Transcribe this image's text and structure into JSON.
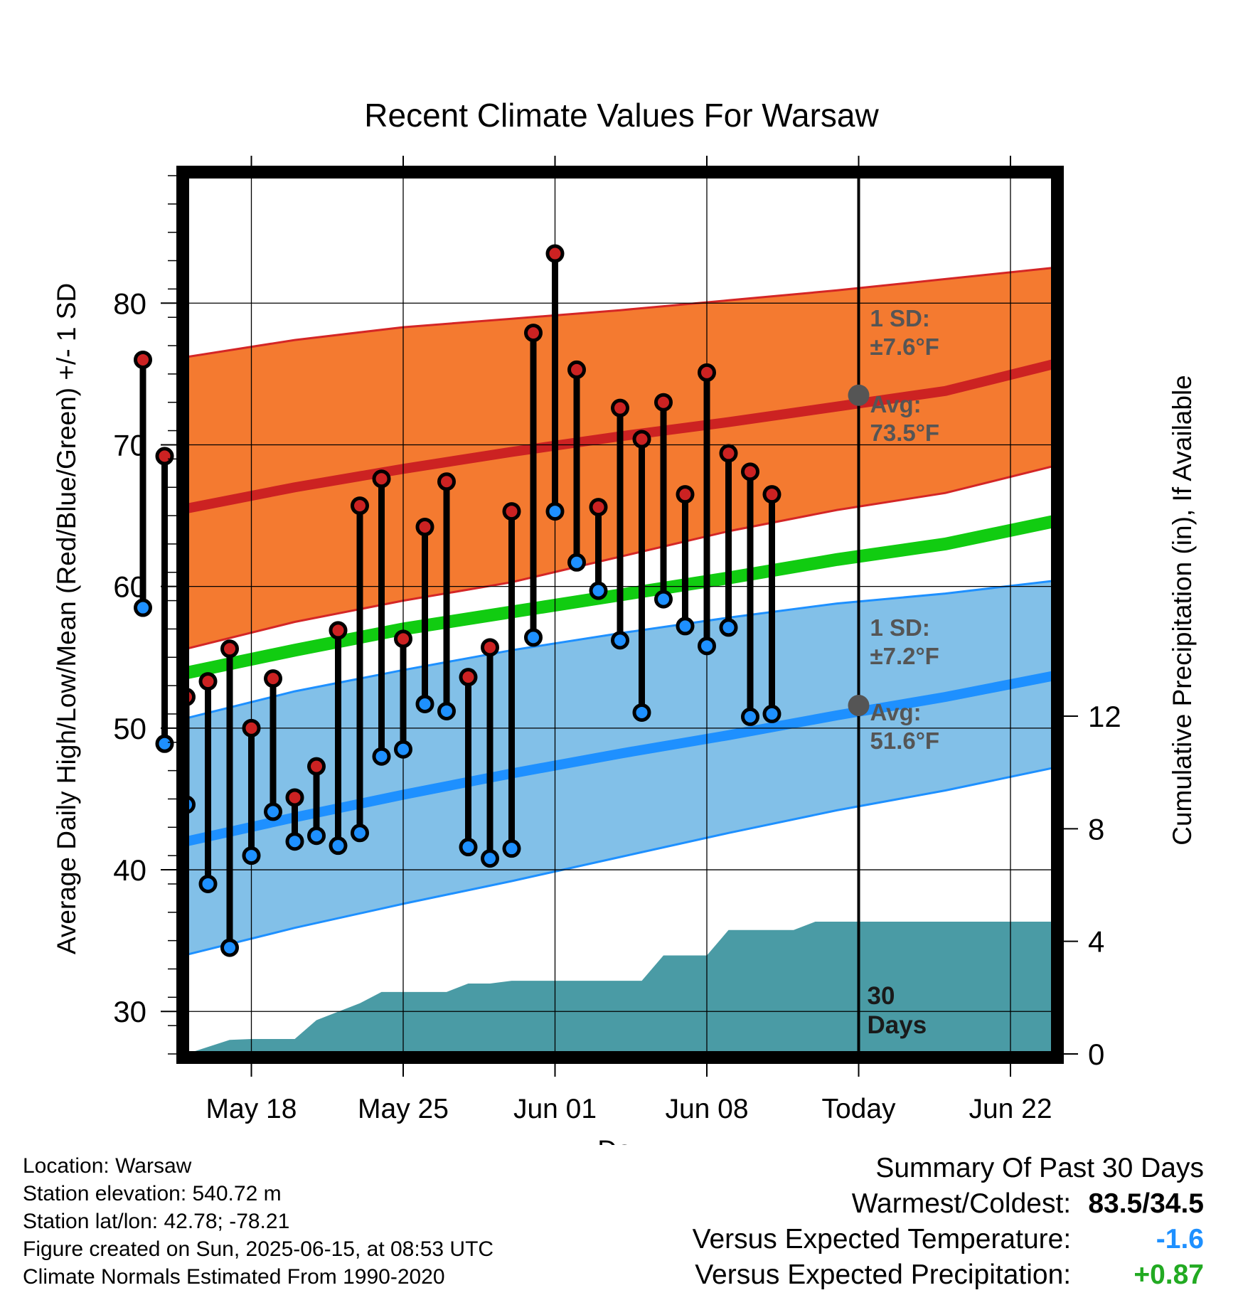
{
  "chart_data": {
    "type": "line",
    "title": "Recent Climate Values For Warsaw",
    "xlabel": "Day",
    "ylabel": "Average Daily High/Low/Mean (Red/Blue/Green) +/- 1 SD",
    "y2label": "Cumulative Precipitation (in), If Available",
    "x_start": "2025-05-13",
    "xlim": [
      "2025-05-15",
      "2025-06-24"
    ],
    "ylim": [
      27,
      89
    ],
    "y2lim": [
      0,
      31.2
    ],
    "x_ticks": [
      {
        "date": "2025-05-18",
        "label": "May 18"
      },
      {
        "date": "2025-05-25",
        "label": "May 25"
      },
      {
        "date": "2025-06-01",
        "label": "Jun 01"
      },
      {
        "date": "2025-06-08",
        "label": "Jun 08"
      },
      {
        "date": "2025-06-15",
        "label": "Today"
      },
      {
        "date": "2025-06-22",
        "label": "Jun 22"
      }
    ],
    "y_ticks": [
      30,
      40,
      50,
      60,
      70,
      80
    ],
    "y2_ticks": [
      0,
      4,
      8,
      12
    ],
    "grid": true,
    "colors": {
      "high_band": "#f47a30",
      "high_band_edge": "#d42626",
      "high_mean": "#cc2222",
      "low_band": "#82c0e8",
      "low_band_edge": "#1e90ff",
      "low_mean": "#1e90ff",
      "mean": "#11cc11",
      "precip": "#4a9ba5",
      "high_point": "#cc2222",
      "low_point": "#1e90ff",
      "marker": "#555555"
    },
    "normals": {
      "dates": [
        "2025-05-15",
        "2025-05-20",
        "2025-05-25",
        "2025-05-30",
        "2025-06-04",
        "2025-06-09",
        "2025-06-14",
        "2025-06-19",
        "2025-06-24"
      ],
      "high_mean": [
        65.5,
        67.0,
        68.3,
        69.5,
        70.6,
        71.6,
        72.7,
        73.8,
        75.7
      ],
      "high_upper": [
        76.2,
        77.4,
        78.3,
        78.9,
        79.5,
        80.2,
        80.9,
        81.7,
        82.5
      ],
      "high_lower": [
        55.6,
        57.5,
        59.0,
        60.3,
        62.1,
        63.9,
        65.4,
        66.6,
        68.5
      ],
      "mean": [
        53.9,
        55.5,
        57.0,
        58.2,
        59.4,
        60.6,
        61.9,
        63.0,
        64.6
      ],
      "low_mean": [
        42.0,
        43.7,
        45.3,
        46.8,
        48.2,
        49.5,
        50.9,
        52.2,
        53.7
      ],
      "low_upper": [
        50.7,
        52.6,
        54.1,
        55.5,
        56.7,
        57.8,
        58.8,
        59.5,
        60.4
      ],
      "low_lower": [
        34.0,
        35.9,
        37.6,
        39.2,
        40.9,
        42.6,
        44.2,
        45.6,
        47.2
      ]
    },
    "series": [
      {
        "name": "High",
        "values": [
          76.0,
          69.2,
          52.2,
          53.3,
          55.6,
          50.0,
          53.5,
          45.1,
          47.3,
          56.9,
          65.7,
          67.6,
          56.3,
          64.2,
          67.4,
          53.6,
          55.7,
          65.3,
          77.9,
          83.5,
          75.3,
          65.6,
          72.6,
          70.4,
          73.0,
          66.5,
          75.1,
          69.4,
          68.1,
          66.5
        ]
      },
      {
        "name": "Low",
        "values": [
          58.5,
          48.9,
          44.6,
          39.0,
          34.5,
          41.0,
          44.1,
          42.0,
          42.4,
          41.7,
          42.6,
          48.0,
          48.5,
          51.7,
          51.2,
          41.6,
          40.8,
          41.5,
          56.4,
          65.3,
          61.7,
          59.7,
          56.2,
          51.1,
          59.1,
          57.2,
          55.8,
          57.1,
          50.8,
          51.0
        ]
      },
      {
        "name": "Cumulative Precipitation",
        "x": [
          "2025-05-15",
          "2025-05-16",
          "2025-05-17",
          "2025-05-18",
          "2025-05-19",
          "2025-05-20",
          "2025-05-21",
          "2025-05-22",
          "2025-05-23",
          "2025-05-24",
          "2025-05-25",
          "2025-05-26",
          "2025-05-27",
          "2025-05-28",
          "2025-05-29",
          "2025-05-30",
          "2025-05-31",
          "2025-06-01",
          "2025-06-02",
          "2025-06-03",
          "2025-06-04",
          "2025-06-05",
          "2025-06-06",
          "2025-06-07",
          "2025-06-08",
          "2025-06-09",
          "2025-06-10",
          "2025-06-11",
          "2025-06-12",
          "2025-06-13",
          "2025-06-14",
          "2025-06-15",
          "2025-06-24"
        ],
        "values": [
          0.0,
          0.25,
          0.5,
          0.53,
          0.53,
          0.53,
          1.2,
          1.5,
          1.8,
          2.2,
          2.2,
          2.2,
          2.2,
          2.5,
          2.5,
          2.6,
          2.6,
          2.6,
          2.6,
          2.6,
          2.6,
          2.6,
          3.5,
          3.5,
          3.5,
          4.4,
          4.4,
          4.4,
          4.4,
          4.7,
          4.7,
          4.7,
          4.7
        ]
      }
    ],
    "annotations": {
      "high_sd_line1": "1 SD:",
      "high_sd_line2": "±7.6°F",
      "high_avg_line1": "Avg:",
      "high_avg_line2": "73.5°F",
      "high_avg_value": 73.5,
      "low_sd_line1": "1 SD:",
      "low_sd_line2": "±7.2°F",
      "low_avg_line1": "Avg:",
      "low_avg_line2": "51.6°F",
      "low_avg_value": 51.6,
      "period_line1": "30",
      "period_line2": "Days"
    }
  },
  "footer": {
    "location": "Location: Warsaw",
    "elevation": "Station elevation: 540.72 m",
    "latlon": "Station lat/lon: 42.78; -78.21",
    "created": "Figure created on Sun, 2025-06-15, at 08:53 UTC",
    "normals": "Climate Normals Estimated From 1990-2020"
  },
  "summary": {
    "title": "Summary Of Past 30 Days",
    "warm_cold_label": "Warmest/Coldest:",
    "warm_cold_value": "83.5/34.5",
    "temp_label": "Versus Expected Temperature:",
    "temp_value": "-1.6",
    "temp_color": "#1e90ff",
    "precip_label": "Versus Expected Precipitation:",
    "precip_value": "+0.87",
    "precip_color": "#22aa22"
  }
}
